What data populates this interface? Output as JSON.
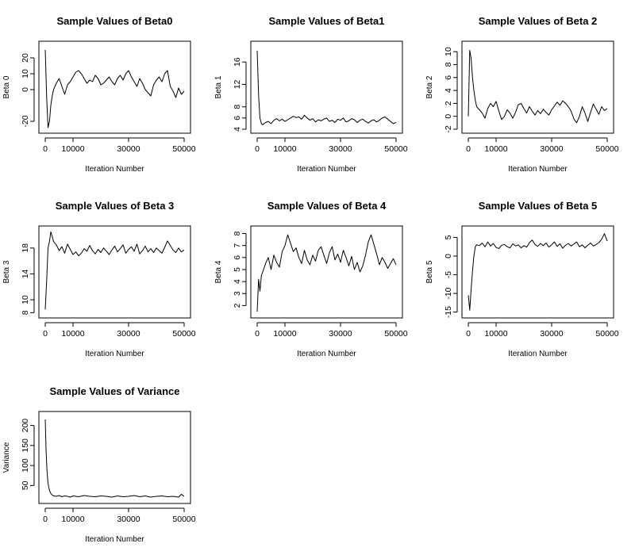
{
  "figure_colors": {
    "background": "#ffffff",
    "ink": "#000000"
  },
  "chart_data": [
    {
      "type": "line",
      "title": "Sample Values of Beta0",
      "xlabel": "Iteration Number",
      "ylabel": "Beta 0",
      "xlim": [
        0,
        50000
      ],
      "ylim": [
        -25,
        28
      ],
      "xticks": [
        0,
        10000,
        30000,
        50000
      ],
      "yticks": [
        -20,
        0,
        10,
        20
      ],
      "grid": false,
      "series": [
        {
          "name": "Beta0",
          "x": [
            0,
            500,
            1000,
            1500,
            2000,
            2500,
            3000,
            4000,
            5000,
            6000,
            7000,
            8000,
            9000,
            10000,
            11000,
            12000,
            13000,
            14000,
            15000,
            16000,
            17000,
            18000,
            19000,
            20000,
            21000,
            22000,
            23000,
            24000,
            25000,
            26000,
            27000,
            28000,
            29000,
            30000,
            31000,
            32000,
            33000,
            34000,
            35000,
            36000,
            37000,
            38000,
            39000,
            40000,
            41000,
            42000,
            43000,
            44000,
            45000,
            46000,
            47000,
            48000,
            49000,
            50000
          ],
          "values": [
            25,
            -5,
            -24,
            -20,
            -10,
            -4,
            0,
            4,
            7,
            2,
            -3,
            3,
            5,
            8,
            11,
            12,
            10,
            7,
            4,
            6,
            5,
            9,
            7,
            3,
            4,
            6,
            8,
            5,
            3,
            7,
            9,
            6,
            10,
            12,
            8,
            5,
            2,
            7,
            4,
            0,
            -2,
            -4,
            3,
            6,
            8,
            5,
            10,
            12,
            2,
            -1,
            -5,
            1,
            -3,
            -1
          ]
        }
      ]
    },
    {
      "type": "line",
      "title": "Sample Values of Beta1",
      "xlabel": "Iteration Number",
      "ylabel": "Beta 1",
      "xlim": [
        0,
        50000
      ],
      "ylim": [
        4,
        19
      ],
      "xticks": [
        0,
        10000,
        30000,
        50000
      ],
      "yticks": [
        4,
        6,
        8,
        12,
        16
      ],
      "grid": false,
      "series": [
        {
          "name": "Beta1",
          "x": [
            0,
            500,
            1000,
            1500,
            2000,
            3000,
            4000,
            5000,
            6000,
            7000,
            8000,
            9000,
            10000,
            11000,
            12000,
            13000,
            14000,
            15000,
            16000,
            17000,
            18000,
            19000,
            20000,
            21000,
            22000,
            23000,
            24000,
            25000,
            26000,
            27000,
            28000,
            29000,
            30000,
            31000,
            32000,
            33000,
            34000,
            35000,
            36000,
            37000,
            38000,
            39000,
            40000,
            41000,
            42000,
            43000,
            44000,
            45000,
            46000,
            47000,
            48000,
            49000,
            50000
          ],
          "values": [
            18,
            10,
            6,
            5,
            4.8,
            5.2,
            5.4,
            5,
            5.6,
            5.9,
            5.5,
            5.8,
            5.4,
            5.7,
            6,
            6.3,
            6.1,
            6.2,
            5.8,
            6.5,
            6,
            5.6,
            5.9,
            5.3,
            5.7,
            5.5,
            5.8,
            6,
            5.4,
            5.6,
            5.2,
            5.8,
            5.6,
            6,
            5.3,
            5.5,
            5.9,
            5.7,
            5.2,
            5.6,
            5.8,
            5.4,
            5.1,
            5.5,
            5.7,
            5.3,
            5.6,
            6,
            6.2,
            5.8,
            5.4,
            5.0,
            5.2
          ]
        }
      ]
    },
    {
      "type": "line",
      "title": "Sample Values of Beta 2",
      "xlabel": "Iteration Number",
      "ylabel": "Beta 2",
      "xlim": [
        0,
        50000
      ],
      "ylim": [
        -2,
        11
      ],
      "xticks": [
        0,
        10000,
        30000,
        50000
      ],
      "yticks": [
        -2,
        0,
        2,
        4,
        6,
        8,
        10
      ],
      "grid": false,
      "series": [
        {
          "name": "Beta2",
          "x": [
            0,
            500,
            1000,
            1500,
            2000,
            2500,
            3000,
            4000,
            5000,
            6000,
            7000,
            8000,
            9000,
            10000,
            11000,
            12000,
            13000,
            14000,
            15000,
            16000,
            17000,
            18000,
            19000,
            20000,
            21000,
            22000,
            23000,
            24000,
            25000,
            26000,
            27000,
            28000,
            29000,
            30000,
            31000,
            32000,
            33000,
            34000,
            35000,
            36000,
            37000,
            38000,
            39000,
            40000,
            41000,
            42000,
            43000,
            44000,
            45000,
            46000,
            47000,
            48000,
            49000,
            50000
          ],
          "values": [
            0,
            10.2,
            9,
            6,
            4,
            2.5,
            1.5,
            1,
            0.5,
            -0.3,
            1.2,
            2,
            1.5,
            2.3,
            0.8,
            -0.5,
            0,
            1,
            0.5,
            -0.3,
            0.6,
            1.8,
            2,
            1.2,
            0.5,
            1.5,
            0.8,
            0.2,
            0.9,
            0.4,
            1.1,
            0.6,
            0.2,
            1,
            1.6,
            2.2,
            1.7,
            2.4,
            2,
            1.5,
            0.8,
            -0.4,
            -1,
            0,
            1.5,
            0.5,
            -0.8,
            0.6,
            1.9,
            1.1,
            0.3,
            1.5,
            0.9,
            1.2
          ]
        }
      ]
    },
    {
      "type": "line",
      "title": "Sample Values of Beta 3",
      "xlabel": "Iteration Number",
      "ylabel": "Beta 3",
      "xlim": [
        0,
        50000
      ],
      "ylim": [
        7.8,
        20.8
      ],
      "xticks": [
        0,
        10000,
        30000,
        50000
      ],
      "yticks": [
        8,
        10,
        14,
        18
      ],
      "grid": false,
      "series": [
        {
          "name": "Beta3",
          "x": [
            0,
            500,
            1000,
            1500,
            2000,
            2500,
            3000,
            4000,
            5000,
            6000,
            7000,
            8000,
            9000,
            10000,
            11000,
            12000,
            13000,
            14000,
            15000,
            16000,
            17000,
            18000,
            19000,
            20000,
            21000,
            22000,
            23000,
            24000,
            25000,
            26000,
            27000,
            28000,
            29000,
            30000,
            31000,
            32000,
            33000,
            34000,
            35000,
            36000,
            37000,
            38000,
            39000,
            40000,
            41000,
            42000,
            43000,
            44000,
            45000,
            46000,
            47000,
            48000,
            49000,
            50000
          ],
          "values": [
            8.5,
            13,
            18,
            19,
            20.5,
            19.8,
            19,
            18.5,
            17.6,
            18.2,
            17.2,
            18.6,
            17.8,
            17,
            17.4,
            16.8,
            17.2,
            17.9,
            17.5,
            18.4,
            17.6,
            17.1,
            17.8,
            17.3,
            18,
            17.5,
            17,
            17.7,
            18.3,
            17.4,
            17.9,
            18.5,
            17.2,
            17.8,
            18.2,
            17.5,
            18.6,
            17.1,
            17.6,
            18.3,
            17.4,
            17.9,
            17.3,
            18,
            17.6,
            17.2,
            18.1,
            19.1,
            18.4,
            17.7,
            17.3,
            18,
            17.4,
            17.7
          ]
        }
      ]
    },
    {
      "type": "line",
      "title": "Sample Values of Beta 4",
      "xlabel": "Iteration Number",
      "ylabel": "Beta 4",
      "xlim": [
        0,
        50000
      ],
      "ylim": [
        1.3,
        8.3
      ],
      "xticks": [
        0,
        10000,
        30000,
        50000
      ],
      "yticks": [
        2,
        3,
        4,
        5,
        6,
        7,
        8
      ],
      "grid": false,
      "series": [
        {
          "name": "Beta4",
          "x": [
            0,
            500,
            1000,
            1500,
            2000,
            3000,
            4000,
            5000,
            6000,
            7000,
            8000,
            9000,
            10000,
            11000,
            12000,
            13000,
            14000,
            15000,
            16000,
            17000,
            18000,
            19000,
            20000,
            21000,
            22000,
            23000,
            24000,
            25000,
            26000,
            27000,
            28000,
            29000,
            30000,
            31000,
            32000,
            33000,
            34000,
            35000,
            36000,
            37000,
            38000,
            39000,
            40000,
            41000,
            42000,
            43000,
            44000,
            45000,
            46000,
            47000,
            48000,
            49000,
            50000
          ],
          "values": [
            1.5,
            4.2,
            3.2,
            4.5,
            4.8,
            5.5,
            6,
            5,
            6.2,
            5.6,
            5.2,
            6.5,
            7,
            7.9,
            7.2,
            6.5,
            6.8,
            6,
            5.5,
            6.6,
            5.8,
            5.4,
            6.2,
            5.7,
            6.6,
            6.9,
            6.2,
            5.5,
            6.4,
            6.9,
            5.8,
            6.3,
            5.6,
            6.6,
            6,
            5.3,
            6.1,
            5,
            5.6,
            4.8,
            5.3,
            6.2,
            7.3,
            7.9,
            7.1,
            6.3,
            5.4,
            6,
            5.6,
            5.1,
            5.5,
            5.9,
            5.4
          ]
        }
      ]
    },
    {
      "type": "line",
      "title": "Sample Values of Beta 5",
      "xlabel": "Iteration Number",
      "ylabel": "Beta 5",
      "xlim": [
        0,
        50000
      ],
      "ylim": [
        -15.5,
        7
      ],
      "xticks": [
        0,
        10000,
        30000,
        50000
      ],
      "yticks": [
        -15,
        -10,
        -5,
        0,
        5
      ],
      "grid": false,
      "series": [
        {
          "name": "Beta5",
          "x": [
            0,
            500,
            1000,
            1500,
            2000,
            2500,
            3000,
            4000,
            5000,
            6000,
            7000,
            8000,
            9000,
            10000,
            11000,
            12000,
            13000,
            14000,
            15000,
            16000,
            17000,
            18000,
            19000,
            20000,
            21000,
            22000,
            23000,
            24000,
            25000,
            26000,
            27000,
            28000,
            29000,
            30000,
            31000,
            32000,
            33000,
            34000,
            35000,
            36000,
            37000,
            38000,
            39000,
            40000,
            41000,
            42000,
            43000,
            44000,
            45000,
            46000,
            47000,
            48000,
            49000,
            50000
          ],
          "values": [
            -10.5,
            -14.5,
            -9,
            -4,
            0,
            2.5,
            3,
            2.8,
            3.5,
            2.5,
            3.8,
            2.7,
            3.4,
            2.3,
            2,
            2.9,
            3.1,
            2.5,
            2.2,
            3.3,
            2.7,
            3,
            2.2,
            2.8,
            2.4,
            3.6,
            4.3,
            3.1,
            2.6,
            3.4,
            2.8,
            3.5,
            2.4,
            3,
            3.8,
            2.6,
            3.3,
            2.1,
            2.9,
            3.4,
            2.7,
            3.2,
            3.8,
            2.5,
            3,
            2.2,
            2.9,
            3.5,
            2.7,
            3.1,
            3.6,
            4.5,
            6,
            4
          ]
        }
      ]
    },
    {
      "type": "line",
      "title": "Sample Values of Variance",
      "xlabel": "Iteration Number",
      "ylabel": "Variance",
      "xlim": [
        0,
        50000
      ],
      "ylim": [
        15,
        225
      ],
      "xticks": [
        0,
        10000,
        30000,
        50000
      ],
      "yticks": [
        50,
        100,
        150,
        200
      ],
      "grid": false,
      "series": [
        {
          "name": "Variance",
          "x": [
            0,
            300,
            600,
            1000,
            1500,
            2000,
            2500,
            3000,
            4000,
            5000,
            6000,
            7000,
            8000,
            9000,
            10000,
            12000,
            14000,
            16000,
            18000,
            20000,
            22000,
            24000,
            26000,
            28000,
            30000,
            32000,
            34000,
            36000,
            38000,
            40000,
            42000,
            44000,
            46000,
            48000,
            49000,
            50000
          ],
          "values": [
            215,
            140,
            90,
            55,
            38,
            30,
            26,
            24,
            23,
            25,
            22,
            24,
            23,
            21,
            24,
            22,
            25,
            23,
            22,
            24,
            23,
            21,
            24,
            22,
            23,
            25,
            22,
            24,
            21,
            23,
            24,
            22,
            23,
            21,
            28,
            23
          ]
        }
      ]
    }
  ]
}
